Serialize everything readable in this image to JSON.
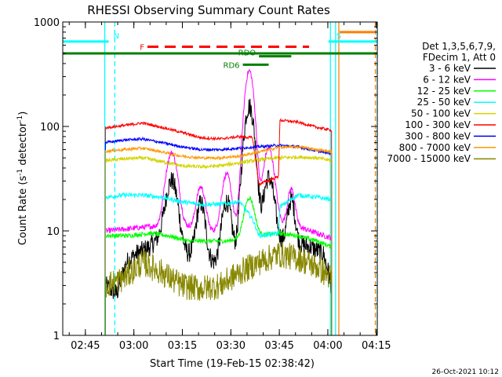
{
  "chart_data": {
    "type": "line",
    "title": "RHESSI Observing Summary Count Rates",
    "xlabel": "Start Time (19-Feb-15 02:38:42)",
    "ylabel_main": "Count Rate (s",
    "ylabel_sup1": "-1",
    "ylabel_mid": " detector",
    "ylabel_sup2": "-1",
    "ylabel_end": ")",
    "y_scale": "log",
    "ylim": [
      1,
      1000
    ],
    "xlim_minutes": [
      -0.7,
      96.6
    ],
    "y_ticks": [
      {
        "value": 1,
        "label": "1"
      },
      {
        "value": 10,
        "label": "10"
      },
      {
        "value": 100,
        "label": "100"
      },
      {
        "value": 1000,
        "label": "1000"
      }
    ],
    "x_ticks": [
      {
        "minutes": 6.3,
        "label": "02:45"
      },
      {
        "minutes": 21.3,
        "label": "03:00"
      },
      {
        "minutes": 36.3,
        "label": "03:15"
      },
      {
        "minutes": 51.3,
        "label": "03:30"
      },
      {
        "minutes": 66.3,
        "label": "03:45"
      },
      {
        "minutes": 81.3,
        "label": "04:00"
      },
      {
        "minutes": 96.3,
        "label": "04:15"
      }
    ],
    "legend_header": [
      "Det 1,3,5,6,7,9,",
      "FDecim 1, Att 0"
    ],
    "series": [
      {
        "name": "3 - 6 keV",
        "color": "#000000",
        "base": [
          [
            12.5,
            3
          ],
          [
            16,
            2.5
          ],
          [
            19,
            5
          ],
          [
            22,
            6
          ],
          [
            26,
            7
          ],
          [
            30,
            9
          ],
          [
            34,
            8
          ],
          [
            38,
            6
          ],
          [
            42,
            6.5
          ],
          [
            46,
            5
          ],
          [
            50,
            5
          ],
          [
            55,
            5.5
          ],
          [
            60,
            6
          ],
          [
            64,
            8
          ],
          [
            68,
            8
          ],
          [
            72,
            7.5
          ],
          [
            76,
            7
          ],
          [
            80,
            6
          ],
          [
            82.5,
            3
          ]
        ],
        "spikes": [
          [
            33,
            22,
            2.2
          ],
          [
            42,
            12,
            1.6
          ],
          [
            50,
            14,
            1.8
          ],
          [
            57,
            150,
            2.0
          ],
          [
            63,
            25,
            2.0
          ],
          [
            70,
            12,
            1.4
          ]
        ],
        "noise": 0.22
      },
      {
        "name": "6 - 12 keV",
        "color": "#ff00ff",
        "base": [
          [
            12.5,
            10
          ],
          [
            20,
            10.5
          ],
          [
            26,
            11
          ],
          [
            32,
            11
          ],
          [
            38,
            11
          ],
          [
            46,
            10
          ],
          [
            52,
            10
          ],
          [
            56,
            11
          ],
          [
            60,
            12
          ],
          [
            66,
            12
          ],
          [
            72,
            11
          ],
          [
            78,
            9.5
          ],
          [
            82.5,
            8.5
          ]
        ],
        "spikes": [
          [
            33,
            45,
            2.2
          ],
          [
            42,
            16,
            1.7
          ],
          [
            50,
            25,
            1.8
          ],
          [
            57,
            330,
            1.8
          ],
          [
            63,
            50,
            2.0
          ],
          [
            70,
            14,
            1.4
          ]
        ],
        "noise": 0.06
      },
      {
        "name": "12 - 25 keV",
        "color": "#00ff00",
        "base": [
          [
            12.5,
            9
          ],
          [
            20,
            9
          ],
          [
            26,
            9.5
          ],
          [
            32,
            9
          ],
          [
            38,
            8
          ],
          [
            44,
            8
          ],
          [
            50,
            8
          ],
          [
            55,
            8.5
          ],
          [
            60,
            9
          ],
          [
            66,
            9.5
          ],
          [
            72,
            9
          ],
          [
            78,
            8
          ],
          [
            82.5,
            7
          ]
        ],
        "spikes": [
          [
            57,
            12,
            2
          ]
        ],
        "noise": 0.05
      },
      {
        "name": "25 - 50 keV",
        "color": "#00ffff",
        "base": [
          [
            12.5,
            21
          ],
          [
            18,
            22
          ],
          [
            24,
            22
          ],
          [
            30,
            21
          ],
          [
            36,
            19
          ],
          [
            42,
            18
          ],
          [
            48,
            18
          ],
          [
            54,
            19
          ],
          [
            58,
            13
          ],
          [
            60,
            9
          ],
          [
            66,
            9.5
          ],
          [
            66.5,
            17
          ],
          [
            72,
            22
          ],
          [
            78,
            21
          ],
          [
            82.5,
            20
          ]
        ],
        "spikes": [],
        "noise": 0.05
      },
      {
        "name": "50 - 100 keV",
        "color": "#d4d400",
        "base": [
          [
            12.5,
            47
          ],
          [
            18,
            49
          ],
          [
            24,
            50
          ],
          [
            30,
            46
          ],
          [
            36,
            42
          ],
          [
            42,
            41
          ],
          [
            48,
            42
          ],
          [
            54,
            45
          ],
          [
            60,
            48
          ],
          [
            66,
            50
          ],
          [
            72,
            51
          ],
          [
            78,
            50
          ],
          [
            82.5,
            47
          ]
        ],
        "spikes": [],
        "noise": 0.04
      },
      {
        "name": "100 - 300 keV",
        "color": "#ff0000",
        "base": [
          [
            12.5,
            97
          ],
          [
            18,
            102
          ],
          [
            24,
            108
          ],
          [
            30,
            98
          ],
          [
            36,
            88
          ],
          [
            42,
            78
          ],
          [
            48,
            76
          ],
          [
            54,
            80
          ],
          [
            58,
            78
          ],
          [
            60,
            28
          ],
          [
            66,
            33
          ],
          [
            66.5,
            115
          ],
          [
            72,
            110
          ],
          [
            78,
            98
          ],
          [
            82.5,
            92
          ]
        ],
        "spikes": [],
        "noise": 0.03
      },
      {
        "name": "300 - 800 keV",
        "color": "#0000ff",
        "base": [
          [
            12.5,
            70
          ],
          [
            18,
            74
          ],
          [
            24,
            76
          ],
          [
            30,
            70
          ],
          [
            36,
            64
          ],
          [
            42,
            60
          ],
          [
            48,
            60
          ],
          [
            54,
            62
          ],
          [
            60,
            64
          ],
          [
            66,
            66
          ],
          [
            72,
            64
          ],
          [
            78,
            58
          ],
          [
            82.5,
            55
          ]
        ],
        "spikes": [],
        "noise": 0.03
      },
      {
        "name": "800 - 7000 keV",
        "color": "#ff9900",
        "base": [
          [
            12.5,
            58
          ],
          [
            18,
            60
          ],
          [
            24,
            62
          ],
          [
            30,
            57
          ],
          [
            36,
            52
          ],
          [
            42,
            50
          ],
          [
            48,
            50
          ],
          [
            54,
            52
          ],
          [
            60,
            57
          ],
          [
            66,
            63
          ],
          [
            72,
            64
          ],
          [
            78,
            60
          ],
          [
            82.5,
            57
          ]
        ],
        "spikes": [],
        "noise": 0.03
      },
      {
        "name": "7000 - 15000 keV",
        "color": "#888800",
        "base": [
          [
            12.5,
            3
          ],
          [
            18,
            3.5
          ],
          [
            24,
            5
          ],
          [
            30,
            4
          ],
          [
            36,
            3
          ],
          [
            42,
            2.8
          ],
          [
            48,
            3
          ],
          [
            54,
            4
          ],
          [
            60,
            5
          ],
          [
            66,
            6
          ],
          [
            72,
            5.5
          ],
          [
            78,
            4.5
          ],
          [
            82.5,
            3.5
          ]
        ],
        "spikes": [],
        "noise": 0.3
      }
    ],
    "top_bars": [
      {
        "label": "N",
        "color": "#00ffff",
        "segments": [
          [
            -0.7,
            13.5
          ]
        ],
        "y_value": 650,
        "dashed": false
      },
      {
        "label": "S",
        "color": "#00ffff",
        "segments": [
          [
            81.5,
            96.6
          ]
        ],
        "y_value": 650,
        "dashed": false
      },
      {
        "label": "",
        "color": "#ff7f00",
        "segments": [
          [
            85.0,
            95.6
          ]
        ],
        "y_value": 800,
        "dashed": false
      },
      {
        "label": "F",
        "color": "#ff0000",
        "segments": [
          [
            25.5,
            75.5
          ]
        ],
        "y_value": 580,
        "dashed": true
      },
      {
        "label": "",
        "color": "#008000",
        "segments": [
          [
            -0.7,
            96.6
          ]
        ],
        "y_value": 500,
        "dashed": false
      },
      {
        "label": "RDO",
        "color": "#008000",
        "segments": [
          [
            60,
            70
          ]
        ],
        "y_value": 470,
        "dashed": false
      },
      {
        "label": "RD6",
        "color": "#008000",
        "segments": [
          [
            55,
            63
          ]
        ],
        "y_value": 390,
        "dashed": false
      }
    ],
    "vlines": [
      {
        "minutes": 12.3,
        "color": "#00ffff",
        "dashed": false
      },
      {
        "minutes": 15.4,
        "color": "#00ffff",
        "dashed": true
      },
      {
        "minutes": 82.1,
        "color": "#00ffff",
        "dashed": false
      },
      {
        "minutes": 83.7,
        "color": "#00ffff",
        "dashed": false
      },
      {
        "minutes": 84.7,
        "color": "#ff7f00",
        "dashed": false
      },
      {
        "minutes": 96.0,
        "color": "#ff7f00",
        "dashed": true
      },
      {
        "minutes": 96.6,
        "color": "#00ffff",
        "dashed": true
      }
    ]
  },
  "footer_date": "26-Oct-2021 10:12"
}
